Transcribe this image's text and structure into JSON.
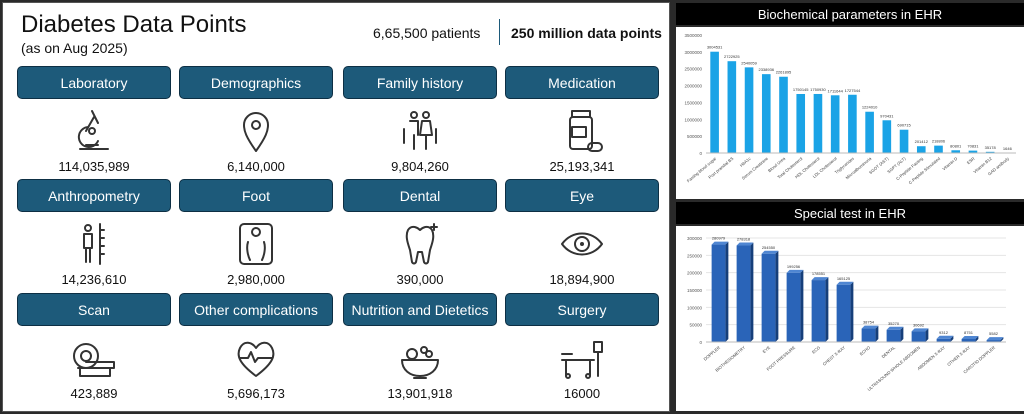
{
  "header": {
    "title": "Diabetes Data Points",
    "subtitle": "(as on Aug 2025)",
    "patients": "6,65,500 patients",
    "data_points": "250 million data points"
  },
  "tiles": [
    {
      "label": "Laboratory",
      "value": "114,035,989",
      "icon": "microscope-icon"
    },
    {
      "label": "Demographics",
      "value": "6,140,000",
      "icon": "location-pin-icon"
    },
    {
      "label": "Family history",
      "value": "9,804,260",
      "icon": "family-icon"
    },
    {
      "label": "Medication",
      "value": "25,193,341",
      "icon": "medicine-bottle-icon"
    },
    {
      "label": "Anthropometry",
      "value": "14,236,610",
      "icon": "height-measure-icon"
    },
    {
      "label": "Foot",
      "value": "2,980,000",
      "icon": "foot-scale-icon"
    },
    {
      "label": "Dental",
      "value": "390,000",
      "icon": "tooth-icon"
    },
    {
      "label": "Eye",
      "value": "18,894,900",
      "icon": "eye-icon"
    },
    {
      "label": "Scan",
      "value": "423,889",
      "icon": "mri-scanner-icon"
    },
    {
      "label": "Other complications",
      "value": "5,696,173",
      "icon": "heartbeat-icon"
    },
    {
      "label": "Nutrition and Dietetics",
      "value": "13,901,918",
      "icon": "fruit-bowl-icon"
    },
    {
      "label": "Surgery",
      "value": "16000",
      "icon": "surgery-bed-icon"
    }
  ],
  "chart_data": [
    {
      "type": "bar",
      "title": "Biochemical parameters in EHR",
      "color": "#1aa3e6",
      "ylim": [
        0,
        3500000
      ],
      "yticks": [
        0,
        500000,
        1000000,
        1500000,
        2000000,
        2500000,
        3000000,
        3500000
      ],
      "categories": [
        "Fasting blood sugar",
        "Post prandial BS",
        "HbA1c",
        "Serum Creatinine",
        "Blood Urea",
        "Total Cholesterol",
        "HDL Cholesterol",
        "LDL Cholesterol",
        "Triglycerides",
        "Microalbuminuria",
        "SGOT (AST)",
        "SGPT (ALT)",
        "C-Peptide Fasting",
        "C-Peptide Stimulated",
        "Vitamin D",
        "ESR",
        "Vitamin B12",
        "GAD antibody"
      ],
      "values": [
        3004531,
        2722925,
        2540059,
        2338936,
        2261895,
        1750145,
        1750930,
        1711644,
        1727544,
        1224010,
        970431,
        690715,
        201412,
        218806,
        80801,
        70831,
        35178,
        1646
      ]
    },
    {
      "type": "bar",
      "title": "Special test in EHR",
      "color": "#2a64b8",
      "ylim": [
        0,
        300000
      ],
      "yticks": [
        0,
        50000,
        100000,
        150000,
        200000,
        250000,
        300000
      ],
      "categories": [
        "DOPPLER",
        "BIOTHESIOMETRY",
        "EYE",
        "FOOT PRESSURE",
        "ECG",
        "CHEST X-RAY",
        "ECHO",
        "DENTAL",
        "ULTRASOUND WHOLE ABDOMEN",
        "ABDOMEN X-RAY",
        "OTHER X-RAY",
        "CAROTID DOPPLER"
      ],
      "values": [
        280979,
        278318,
        254550,
        199256,
        178551,
        165125,
        38754,
        35270,
        30692,
        9312,
        8751,
        5582
      ]
    }
  ]
}
